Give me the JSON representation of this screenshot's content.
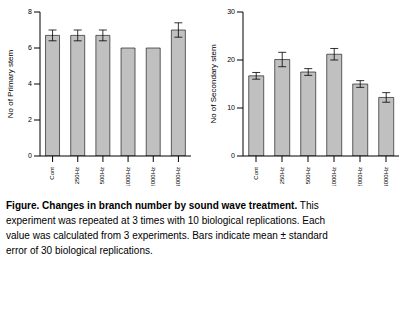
{
  "chart_data": [
    {
      "type": "bar",
      "categories": [
        "Cont",
        "250Hz",
        "500Hz",
        "1000Hz",
        "2000Hz",
        "3000Hz"
      ],
      "values": [
        6.7,
        6.7,
        6.7,
        6.0,
        6.0,
        7.0
      ],
      "errors": [
        0.3,
        0.3,
        0.3,
        0,
        0,
        0.4
      ],
      "ylabel": "No of Primary stem",
      "ylim": [
        0,
        8
      ],
      "yticks": [
        0,
        2,
        4,
        6,
        8
      ],
      "color": "#c0c0c0",
      "grid": false
    },
    {
      "type": "bar",
      "categories": [
        "Cont",
        "250Hz",
        "500Hz",
        "1000Hz",
        "2000Hz",
        "3000Hz"
      ],
      "values": [
        16.7,
        20.1,
        17.5,
        21.2,
        15.0,
        12.2
      ],
      "errors": [
        0.7,
        1.5,
        0.7,
        1.2,
        0.7,
        1.0
      ],
      "ylabel": "No of Secondary stem",
      "ylim": [
        0,
        30
      ],
      "yticks": [
        0,
        10,
        20,
        30
      ],
      "color": "#c0c0c0",
      "grid": false
    }
  ],
  "caption": {
    "title": "Figure. Changes in branch number by sound wave treatment.",
    "text": "This experiment was repeated at 3 times with 10 biological replications. Each value was calculated from 3 experiments. Bars indicate mean ± standard error of 30 biological replications."
  }
}
